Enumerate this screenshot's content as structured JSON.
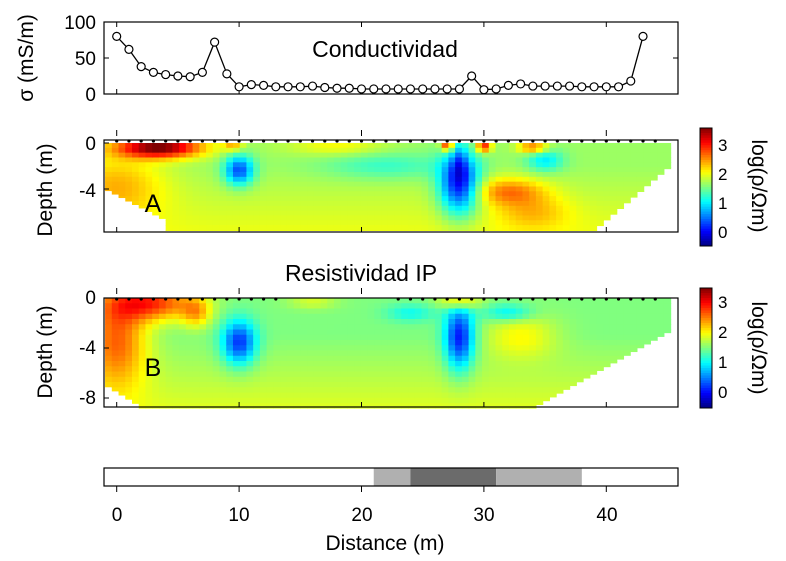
{
  "chart_data": [
    {
      "type": "line",
      "title": "Conductividad",
      "ylabel": "σ (mS/m)",
      "yticks": [
        0,
        50,
        100
      ],
      "ylim": [
        0,
        100
      ],
      "xlim": [
        -1,
        45
      ],
      "marker": "open-circle",
      "x": [
        0,
        1,
        2,
        3,
        4,
        5,
        6,
        7,
        8,
        9,
        10,
        11,
        12,
        13,
        14,
        15,
        16,
        17,
        18,
        19,
        20,
        21,
        22,
        23,
        24,
        25,
        26,
        27,
        28,
        29,
        30,
        31,
        32,
        33,
        34,
        35,
        36,
        37,
        38,
        39,
        40,
        41,
        42,
        43
      ],
      "values": [
        80,
        62,
        38,
        30,
        27,
        25,
        24,
        30,
        72,
        28,
        10,
        13,
        12,
        10,
        10,
        10,
        11,
        9,
        8,
        8,
        7,
        7,
        7,
        7,
        7,
        7,
        7,
        7,
        7,
        25,
        6,
        7,
        12,
        14,
        11,
        11,
        11,
        11,
        10,
        10,
        10,
        10,
        18,
        80
      ]
    },
    {
      "type": "heatmap",
      "title": "",
      "panel_label": "A",
      "ylabel": "Depth (m)",
      "yticks": [
        "0",
        "-4"
      ],
      "colorbar": {
        "label": "log(ρ/Ωm)",
        "ticks": [
          "3",
          "2",
          "1",
          "0"
        ],
        "range": [
          -0.3,
          3.3
        ],
        "colormap": "jet"
      }
    },
    {
      "type": "heatmap",
      "title": "Resistividad IP",
      "panel_label": "B",
      "ylabel": "Depth (m)",
      "yticks": [
        "0",
        "-4",
        "-8"
      ],
      "colorbar": {
        "label": "log(ρ/Ωm)",
        "ticks": [
          "3",
          "2",
          "1",
          "0"
        ],
        "range": [
          -0.3,
          3.3
        ],
        "colormap": "jet"
      }
    },
    {
      "type": "bar",
      "title": "",
      "xlabel": "Distance (m)",
      "xticks": [
        "0",
        "10",
        "20",
        "30",
        "40"
      ],
      "xlim": [
        -1,
        45
      ],
      "segments": [
        {
          "start": 21,
          "end": 24,
          "color": "#b0b0b0"
        },
        {
          "start": 24,
          "end": 31,
          "color": "#6b6b6b"
        },
        {
          "start": 31,
          "end": 38,
          "color": "#b0b0b0"
        }
      ]
    }
  ]
}
